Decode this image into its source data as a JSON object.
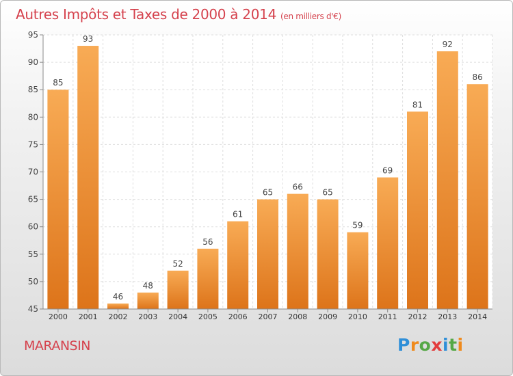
{
  "title": "Autres Impôts et Taxes de 2000 à 2014",
  "subtitle": "(en milliers d'€)",
  "town": "MARANSIN",
  "logo": {
    "letters": [
      "P",
      "r",
      "o",
      "x",
      "i",
      "t",
      "i"
    ],
    "colors": [
      "#2f8fd8",
      "#ef8a1c",
      "#55a846",
      "#e33c3c",
      "#2f8fd8",
      "#55a846",
      "#ef8a1c"
    ]
  },
  "colors": {
    "bar_light": "#f8ab55",
    "bar_dark": "#dd741a",
    "title": "#d5424d"
  },
  "chart_data": {
    "type": "bar",
    "title": "Autres Impôts et Taxes de 2000 à 2014",
    "subtitle": "(en milliers d'€)",
    "xlabel": "",
    "ylabel": "",
    "categories": [
      "2000",
      "2001",
      "2002",
      "2003",
      "2004",
      "2005",
      "2006",
      "2007",
      "2008",
      "2009",
      "2010",
      "2011",
      "2012",
      "2013",
      "2014"
    ],
    "values": [
      85,
      93,
      46,
      48,
      52,
      56,
      61,
      65,
      66,
      65,
      59,
      69,
      81,
      92,
      86
    ],
    "ylim": [
      45,
      95
    ],
    "yticks": [
      45,
      50,
      55,
      60,
      65,
      70,
      75,
      80,
      85,
      90,
      95
    ],
    "grid": true,
    "legend": "none"
  }
}
